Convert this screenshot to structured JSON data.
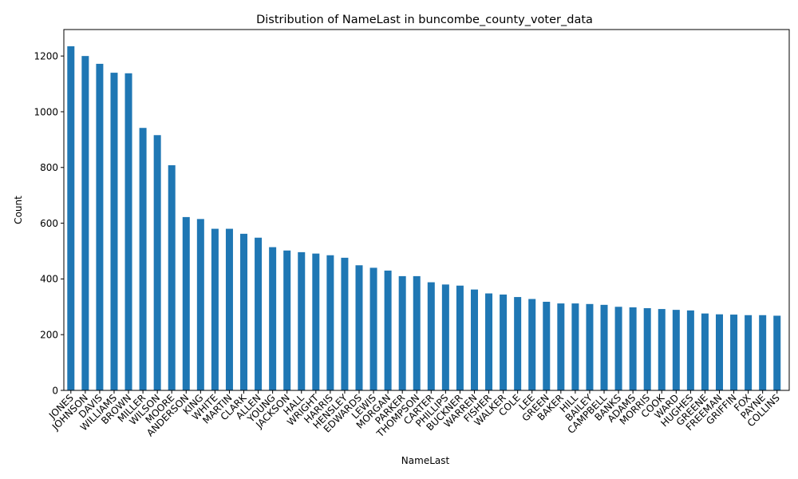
{
  "chart_data": {
    "type": "bar",
    "title": "Distribution of NameLast in buncombe_county_voter_data",
    "xlabel": "NameLast",
    "ylabel": "Count",
    "ylim": [
      0,
      1295
    ],
    "yticks": [
      0,
      200,
      400,
      600,
      800,
      1000,
      1200
    ],
    "grid": false,
    "legend": "none",
    "bar_color": "#1f77b4",
    "categories": [
      "JONES",
      "JOHNSON",
      "DAVIS",
      "WILLIAMS",
      "BROWN",
      "MILLER",
      "WILSON",
      "MOORE",
      "ANDERSON",
      "KING",
      "WHITE",
      "MARTIN",
      "CLARK",
      "ALLEN",
      "YOUNG",
      "JACKSON",
      "HALL",
      "WRIGHT",
      "HARRIS",
      "HENSLEY",
      "EDWARDS",
      "LEWIS",
      "MORGAN",
      "PARKER",
      "THOMPSON",
      "CARTER",
      "PHILLIPS",
      "BUCKNER",
      "WARREN",
      "FISHER",
      "WALKER",
      "COLE",
      "LEE",
      "GREEN",
      "BAKER",
      "HILL",
      "BAILEY",
      "CAMPBELL",
      "BANKS",
      "ADAMS",
      "MORRIS",
      "COOK",
      "WARD",
      "HUGHES",
      "GREENE",
      "FREEMAN",
      "GRIFFIN",
      "FOX",
      "PAYNE",
      "COLLINS"
    ],
    "values": [
      1235,
      1200,
      1172,
      1140,
      1138,
      942,
      916,
      808,
      622,
      615,
      580,
      580,
      562,
      548,
      514,
      502,
      496,
      491,
      485,
      476,
      449,
      440,
      430,
      410,
      410,
      388,
      380,
      376,
      362,
      348,
      344,
      335,
      328,
      318,
      312,
      312,
      310,
      307,
      300,
      298,
      295,
      292,
      289,
      287,
      276,
      273,
      272,
      270,
      270,
      268
    ]
  }
}
